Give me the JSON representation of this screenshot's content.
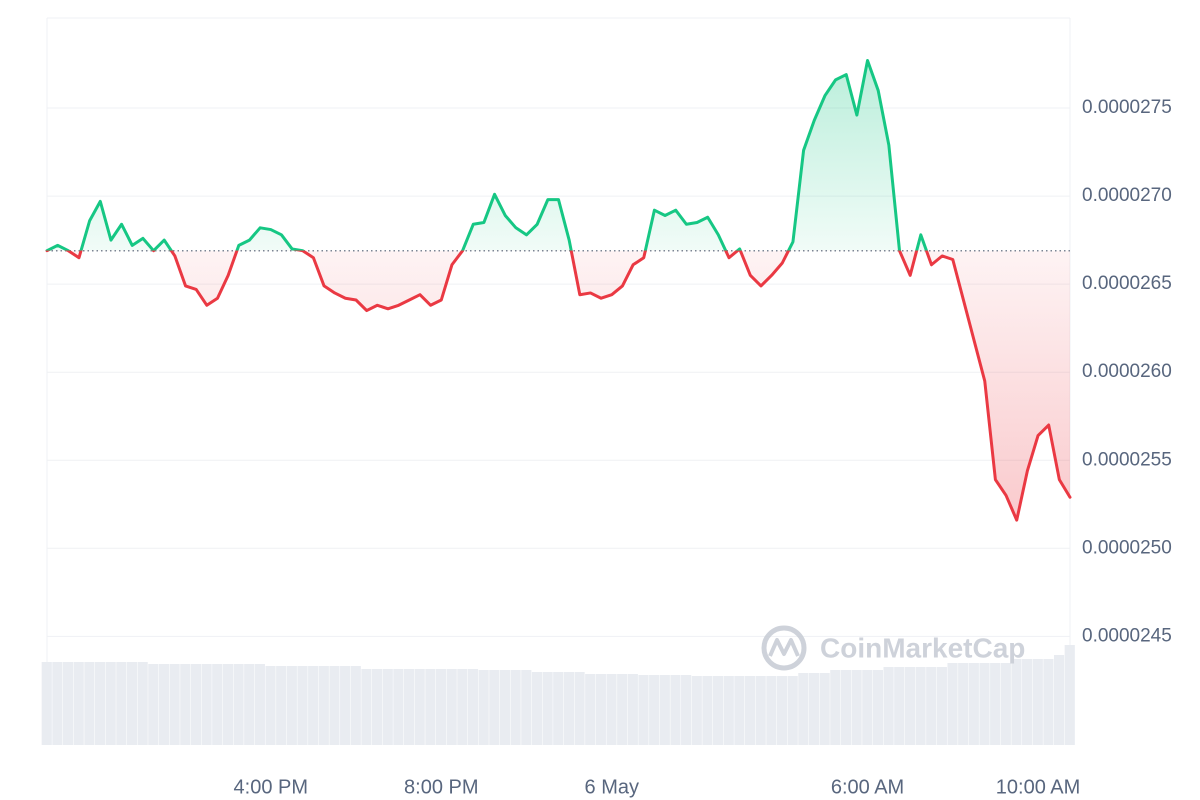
{
  "chart_data": {
    "type": "line",
    "watermark": "CoinMarketCap",
    "categories": [
      null,
      null,
      null,
      null,
      null,
      null,
      null,
      null,
      null,
      null,
      null,
      null,
      null,
      null,
      null,
      null,
      null,
      null,
      null,
      null,
      null,
      "4:00 PM",
      null,
      null,
      null,
      null,
      null,
      null,
      null,
      null,
      null,
      null,
      null,
      null,
      null,
      null,
      null,
      "8:00 PM",
      null,
      null,
      null,
      null,
      null,
      null,
      null,
      null,
      null,
      null,
      null,
      null,
      null,
      null,
      null,
      "6 May",
      null,
      null,
      null,
      null,
      null,
      null,
      null,
      null,
      null,
      null,
      null,
      null,
      null,
      null,
      null,
      null,
      null,
      null,
      null,
      null,
      null,
      null,
      null,
      "6:00 AM",
      null,
      null,
      null,
      null,
      null,
      null,
      null,
      null,
      null,
      null,
      null,
      null,
      null,
      null,
      null,
      "10:00 AM",
      null,
      null,
      null
    ],
    "values": [
      2.669e-05,
      2.672e-05,
      2.669e-05,
      2.665e-05,
      2.686e-05,
      2.697e-05,
      2.675e-05,
      2.684e-05,
      2.672e-05,
      2.676e-05,
      2.669e-05,
      2.675e-05,
      2.666e-05,
      2.649e-05,
      2.647e-05,
      2.638e-05,
      2.642e-05,
      2.655e-05,
      2.672e-05,
      2.675e-05,
      2.682e-05,
      2.681e-05,
      2.678e-05,
      2.67e-05,
      2.669e-05,
      2.665e-05,
      2.649e-05,
      2.645e-05,
      2.642e-05,
      2.641e-05,
      2.635e-05,
      2.638e-05,
      2.636e-05,
      2.638e-05,
      2.641e-05,
      2.644e-05,
      2.638e-05,
      2.641e-05,
      2.661e-05,
      2.669e-05,
      2.684e-05,
      2.685e-05,
      2.701e-05,
      2.689e-05,
      2.682e-05,
      2.678e-05,
      2.684e-05,
      2.698e-05,
      2.698e-05,
      2.675e-05,
      2.644e-05,
      2.645e-05,
      2.642e-05,
      2.644e-05,
      2.649e-05,
      2.661e-05,
      2.665e-05,
      2.692e-05,
      2.689e-05,
      2.692e-05,
      2.684e-05,
      2.685e-05,
      2.688e-05,
      2.678e-05,
      2.665e-05,
      2.67e-05,
      2.655e-05,
      2.649e-05,
      2.655e-05,
      2.662e-05,
      2.674e-05,
      2.726e-05,
      2.743e-05,
      2.757e-05,
      2.766e-05,
      2.769e-05,
      2.746e-05,
      2.777e-05,
      2.76e-05,
      2.729e-05,
      2.669e-05,
      2.655e-05,
      2.678e-05,
      2.661e-05,
      2.666e-05,
      2.664e-05,
      2.641e-05,
      2.618e-05,
      2.595e-05,
      2.539e-05,
      2.53e-05,
      2.516e-05,
      2.544e-05,
      2.564e-05,
      2.57e-05,
      2.539e-05,
      2.529e-05
    ],
    "volume": [
      83,
      83,
      83,
      83,
      83,
      83,
      83,
      83,
      83,
      83,
      81,
      81,
      81,
      81,
      81,
      81,
      81,
      81,
      81,
      81,
      81,
      79,
      79,
      79,
      79,
      79,
      79,
      79,
      79,
      79,
      76,
      76,
      76,
      76,
      76,
      76,
      76,
      76,
      76,
      76,
      76,
      75,
      75,
      75,
      75,
      75,
      73,
      73,
      73,
      73,
      73,
      71,
      71,
      71,
      71,
      71,
      70,
      70,
      70,
      70,
      70,
      69,
      69,
      69,
      69,
      69,
      69,
      69,
      69,
      69,
      69,
      72,
      72,
      72,
      75,
      75,
      75,
      75,
      75,
      78,
      78,
      78,
      78,
      78,
      78,
      82,
      82,
      82,
      82,
      82,
      82,
      86,
      86,
      86,
      86,
      90,
      100
    ],
    "volume_ylim": [
      0,
      100
    ],
    "baseline": 2.669e-05,
    "color_up": "#16c784",
    "color_down": "#ea3943",
    "volume_color": "#e9ecf1",
    "ylim": [
      2.39e-05,
      2.8e-05
    ],
    "yticks": [
      2.45e-05,
      {
        "value": 2.5e-05,
        "label": "0.0000250"
      },
      2.55e-05,
      {
        "value": 2.6e-05,
        "label": "0.0000260"
      },
      2.65e-05,
      {
        "value": 2.7e-05,
        "label": "0.0000270"
      },
      2.75e-05
    ],
    "grid": true
  }
}
